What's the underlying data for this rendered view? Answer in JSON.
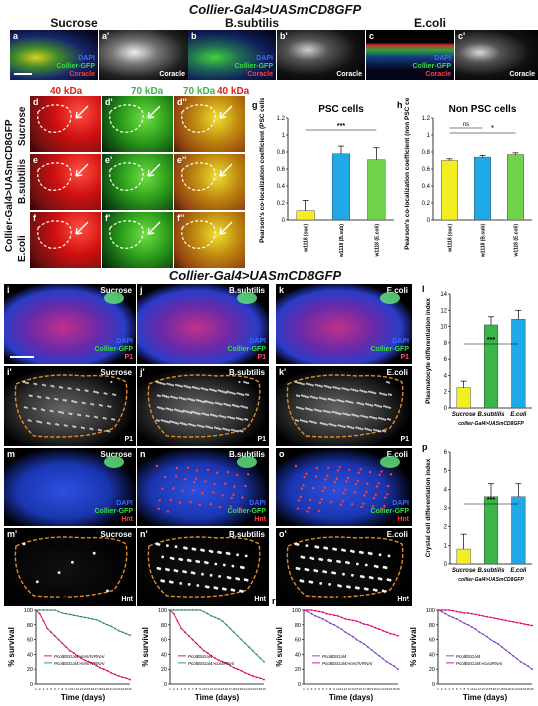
{
  "figure": {
    "title_top": "Collier-Gal4>UASmCD8GFP",
    "title_mid": "Collier-Gal4>UASmCD8GFP",
    "side_label": "Collier-Gal4>UASmCD8GFP",
    "col_headers": [
      "Sucrose",
      "B.subtilis",
      "E.coli"
    ],
    "row_top_panels": [
      {
        "letter": "a",
        "channels": [
          "DAPI",
          "Collier-GFP",
          "Coracle"
        ]
      },
      {
        "letter": "a'",
        "channels": [
          "Coracle"
        ]
      },
      {
        "letter": "b",
        "channels": [
          "DAPI",
          "Collier-GFP",
          "Coracle"
        ]
      },
      {
        "letter": "b'",
        "channels": [
          "Coracle"
        ]
      },
      {
        "letter": "c",
        "channels": [
          "DAPI",
          "Collier-GFP",
          "Coracle"
        ]
      },
      {
        "letter": "c'",
        "channels": [
          "Coracle"
        ]
      }
    ],
    "kda_labels": [
      "40 kDa",
      "70 kDa",
      "70 kDa",
      "40 kDa"
    ],
    "dfe_rows": [
      "Sucrose",
      "B.subtilis",
      "E.coli"
    ],
    "dfe_letters": [
      [
        "d",
        "d'",
        "d''"
      ],
      [
        "e",
        "e'",
        "e''"
      ],
      [
        "f",
        "f'",
        "f''"
      ]
    ],
    "lymph_rows": [
      {
        "letters": [
          "i",
          "j",
          "k"
        ],
        "channels": [
          "DAPI",
          "Collier-GFP",
          "P1"
        ],
        "labels": [
          "Sucrose",
          "B.subtilis",
          "E.coli"
        ]
      },
      {
        "letters": [
          "i'",
          "j'",
          "k'"
        ],
        "channels": [
          "P1"
        ],
        "labels": [
          "Sucrose",
          "B.subtilis",
          "E.coli"
        ]
      },
      {
        "letters": [
          "m",
          "n",
          "o"
        ],
        "channels": [
          "DAPI",
          "Collier-GFP",
          "Hnt"
        ],
        "labels": [
          "Sucrose",
          "B.subtilis",
          "E.coli"
        ]
      },
      {
        "letters": [
          "m'",
          "n'",
          "o'"
        ],
        "channels": [
          "Hnt"
        ],
        "labels": [
          "Sucrose",
          "B.subtilis",
          "E.coli"
        ]
      }
    ]
  },
  "chart_data": [
    {
      "letter": "g",
      "type": "bar",
      "title": "PSC cells",
      "ylabel": "Pearson's co-localization coefficient (PSC cells)",
      "categories": [
        "w1118 (suc)",
        "w1118 (B.sub)",
        "w1118 (E.coli)"
      ],
      "values": [
        0.11,
        0.78,
        0.71
      ],
      "errors": [
        0.12,
        0.09,
        0.14
      ],
      "colors": [
        "#f2ee1f",
        "#1fa9e6",
        "#6fd44a"
      ],
      "ylim": [
        0,
        1.2
      ],
      "yticks": [
        "0",
        "0.2",
        "0.4",
        "0.6",
        "0.8",
        "1",
        "1.2"
      ],
      "sig": "***"
    },
    {
      "letter": "h",
      "type": "bar",
      "title": "Non PSC cells",
      "ylabel": "Pearson's co-localization coefficient (non PSC cells)",
      "categories": [
        "w1118 (suc)",
        "w1118 (B.sub)",
        "w1118 (E.coli)"
      ],
      "values": [
        0.7,
        0.74,
        0.77
      ],
      "errors": [
        0.02,
        0.02,
        0.02
      ],
      "colors": [
        "#f2ee1f",
        "#1fa9e6",
        "#6fd44a"
      ],
      "ylim": [
        0,
        1.2
      ],
      "yticks": [
        "0",
        "0.2",
        "0.4",
        "0.6",
        "0.8",
        "1",
        "1.2"
      ],
      "sig": [
        "ns",
        "*"
      ]
    },
    {
      "letter": "l",
      "type": "bar",
      "ylabel": "Plasmatocyte differentiation index",
      "xlabel": "collier-Gal4>UASmCD8GFP",
      "categories": [
        "Sucrose",
        "B.subtilis",
        "E.coli"
      ],
      "values": [
        2.5,
        10.2,
        10.9
      ],
      "errors": [
        0.8,
        1.0,
        1.1
      ],
      "colors": [
        "#f2ee1f",
        "#3bb54a",
        "#1fa9e6"
      ],
      "ylim": [
        0,
        14
      ],
      "yticks": [
        "0",
        "2",
        "4",
        "6",
        "8",
        "10",
        "12",
        "14"
      ],
      "sig": "***"
    },
    {
      "letter": "p",
      "type": "bar",
      "ylabel": "Crystal cell differentiation index",
      "xlabel": "collier-Gal4>UASmCD8GFP",
      "categories": [
        "Sucrose",
        "B.subtilis",
        "E.coli"
      ],
      "values": [
        0.8,
        3.6,
        3.6
      ],
      "errors": [
        0.8,
        0.7,
        0.7
      ],
      "colors": [
        "#f2ee1f",
        "#3bb54a",
        "#1fa9e6"
      ],
      "ylim": [
        0,
        6
      ],
      "yticks": [
        "0",
        "1",
        "2",
        "3",
        "4",
        "5",
        "6"
      ],
      "sig": "***"
    },
    {
      "letter": "q",
      "type": "line",
      "title": "B.subtilis",
      "ylabel": "% survival",
      "xlabel": "Time (days)",
      "ylim": [
        0,
        100
      ],
      "yticks": [
        "0",
        "20",
        "40",
        "60",
        "80",
        "100"
      ],
      "x": [
        1,
        2,
        3,
        4,
        5,
        6,
        7,
        8,
        9,
        10,
        11,
        12,
        13,
        14,
        15,
        16,
        17,
        18,
        19,
        20,
        21,
        22,
        23,
        24,
        25,
        26
      ],
      "series": [
        {
          "name": "PcolBSGal4>mrs/IVRNAi",
          "color": "#e0004d",
          "values": [
            100,
            95,
            85,
            75,
            70,
            65,
            60,
            55,
            50,
            45,
            42,
            38,
            35,
            32,
            30,
            28,
            25,
            22,
            20,
            18,
            15,
            13,
            11,
            9,
            8,
            6
          ]
        },
        {
          "name": "PcolBSGal4>mrs/IVRNAi",
          "color": "#2e8b57",
          "values": [
            100,
            100,
            100,
            100,
            100,
            100,
            98,
            96,
            95,
            94,
            93,
            92,
            91,
            90,
            89,
            88,
            87,
            85,
            82,
            80,
            78,
            75,
            72,
            70,
            68,
            66
          ]
        }
      ]
    },
    {
      "letter": "q'",
      "type": "line",
      "ylabel": "% survival",
      "xlabel": "Time (days)",
      "ylim": [
        0,
        100
      ],
      "yticks": [
        "0",
        "20",
        "40",
        "60",
        "80",
        "100"
      ],
      "x": [
        1,
        2,
        3,
        4,
        5,
        6,
        7,
        8,
        9,
        10,
        11,
        12,
        13,
        14,
        15,
        16,
        17,
        18,
        19,
        20,
        21,
        22,
        23,
        24,
        25,
        26
      ],
      "series": [
        {
          "name": "PcolBSGal4",
          "color": "#e0004d",
          "values": [
            100,
            95,
            85,
            75,
            70,
            65,
            60,
            55,
            50,
            45,
            42,
            38,
            35,
            32,
            30,
            28,
            25,
            22,
            20,
            18,
            15,
            13,
            11,
            9,
            8,
            6
          ]
        },
        {
          "name": "PcolBSGal4>coraRNAi",
          "color": "#2e8b57",
          "values": [
            100,
            100,
            100,
            100,
            100,
            100,
            100,
            100,
            100,
            98,
            95,
            92,
            90,
            88,
            85,
            80,
            75,
            70,
            65,
            60,
            55,
            50,
            45,
            40,
            35,
            30
          ]
        }
      ]
    },
    {
      "letter": "r",
      "type": "line",
      "title": "E.coli",
      "ylabel": "% survival",
      "xlabel": "Time (days)",
      "ylim": [
        0,
        100
      ],
      "yticks": [
        "0",
        "20",
        "40",
        "60",
        "80",
        "100"
      ],
      "x": [
        1,
        2,
        3,
        4,
        5,
        6,
        7,
        8,
        9,
        10,
        11,
        12,
        13,
        14,
        15,
        16,
        17,
        18,
        19,
        20,
        21,
        22,
        23,
        24,
        25,
        26
      ],
      "series": [
        {
          "name": "PcolBSGal4",
          "color": "#7b3fbf",
          "values": [
            100,
            98,
            95,
            92,
            90,
            88,
            85,
            82,
            80,
            77,
            74,
            70,
            67,
            64,
            60,
            57,
            54,
            50,
            46,
            42,
            38,
            34,
            30,
            27,
            24,
            20
          ]
        },
        {
          "name": "PcolBSGal4>mrs/IVRNAi",
          "color": "#e0006f",
          "values": [
            100,
            100,
            100,
            99,
            98,
            97,
            95,
            94,
            93,
            92,
            90,
            88,
            87,
            86,
            85,
            83,
            81,
            80,
            78,
            76,
            74,
            72,
            70,
            68,
            67,
            65
          ]
        }
      ]
    },
    {
      "letter": "r'",
      "type": "line",
      "ylabel": "% survival",
      "xlabel": "Time (days)",
      "ylim": [
        0,
        100
      ],
      "yticks": [
        "0",
        "20",
        "40",
        "60",
        "80",
        "100"
      ],
      "x": [
        1,
        2,
        3,
        4,
        5,
        6,
        7,
        8,
        9,
        10,
        11,
        12,
        13,
        14,
        15,
        16,
        17,
        18,
        19,
        20,
        21,
        22,
        23,
        24,
        25,
        26
      ],
      "series": [
        {
          "name": "PcolBSGal4",
          "color": "#7b3fbf",
          "values": [
            100,
            98,
            95,
            92,
            90,
            88,
            85,
            82,
            80,
            77,
            74,
            70,
            67,
            64,
            60,
            57,
            54,
            50,
            46,
            42,
            38,
            34,
            30,
            27,
            24,
            20
          ]
        },
        {
          "name": "PcolBSGal4>coraRNAi",
          "color": "#e0006f",
          "values": [
            100,
            100,
            100,
            100,
            99,
            98,
            97,
            96,
            96,
            95,
            94,
            93,
            92,
            91,
            90,
            89,
            88,
            87,
            86,
            85,
            84,
            83,
            82,
            81,
            80,
            79
          ]
        }
      ]
    }
  ]
}
